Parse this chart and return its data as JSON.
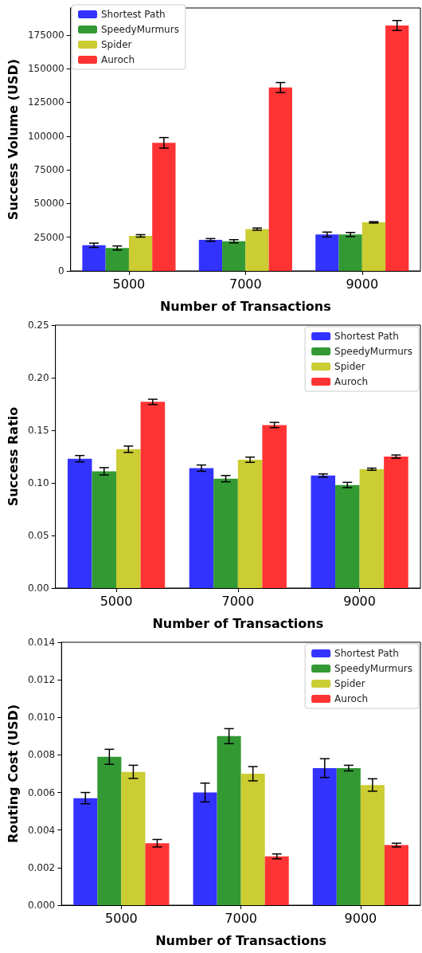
{
  "chart_data": [
    {
      "type": "bar",
      "xlabel": "Number of Transactions",
      "ylabel": "Success Volume (USD)",
      "categories": [
        "5000",
        "7000",
        "9000"
      ],
      "ylim": [
        0,
        195000
      ],
      "yticks": [
        0,
        25000,
        50000,
        75000,
        100000,
        125000,
        150000,
        175000
      ],
      "grid": false,
      "legend": "top left",
      "series": [
        {
          "name": "Shortest Path",
          "color": "#3333ff",
          "values": [
            19000,
            23000,
            27000
          ],
          "errors": [
            1600,
            1000,
            1800
          ]
        },
        {
          "name": "SpeedyMurmurs",
          "color": "#339933",
          "values": [
            17000,
            22000,
            27000
          ],
          "errors": [
            1500,
            1200,
            1500
          ]
        },
        {
          "name": "Spider",
          "color": "#cccc33",
          "values": [
            26000,
            31000,
            36000
          ],
          "errors": [
            900,
            800,
            500
          ]
        },
        {
          "name": "Auroch",
          "color": "#ff3333",
          "values": [
            95000,
            136000,
            182000
          ],
          "errors": [
            3900,
            3700,
            3700
          ]
        }
      ]
    },
    {
      "type": "bar",
      "xlabel": "Number of Transactions",
      "ylabel": "Success Ratio",
      "categories": [
        "5000",
        "7000",
        "9000"
      ],
      "ylim": [
        0,
        0.25
      ],
      "yticks": [
        {
          "value": 0,
          "label": "0.00"
        },
        0.05,
        {
          "value": 0.1,
          "label": "0.10"
        },
        0.15,
        {
          "value": 0.2,
          "label": "0.20"
        },
        0.25
      ],
      "grid": false,
      "legend": "top right",
      "series": [
        {
          "name": "Shortest Path",
          "color": "#3333ff",
          "values": [
            0.123,
            0.114,
            0.107
          ],
          "errors": [
            0.003,
            0.003,
            0.0015
          ]
        },
        {
          "name": "SpeedyMurmurs",
          "color": "#339933",
          "values": [
            0.111,
            0.104,
            0.098
          ],
          "errors": [
            0.0035,
            0.003,
            0.0025
          ]
        },
        {
          "name": "Spider",
          "color": "#cccc33",
          "values": [
            0.132,
            0.122,
            0.113
          ],
          "errors": [
            0.003,
            0.0025,
            0.001
          ]
        },
        {
          "name": "Auroch",
          "color": "#ff3333",
          "values": [
            0.177,
            0.155,
            0.125
          ],
          "errors": [
            0.0025,
            0.0025,
            0.0015
          ]
        }
      ]
    },
    {
      "type": "bar",
      "xlabel": "Number of Transactions",
      "ylabel": "Routing Cost (USD)",
      "categories": [
        "5000",
        "7000",
        "9000"
      ],
      "ylim": [
        0,
        0.014
      ],
      "yticks": [
        {
          "value": 0,
          "label": "0.000"
        },
        0.002,
        0.004,
        0.006,
        0.008,
        {
          "value": 0.01,
          "label": "0.010"
        },
        0.012,
        0.014
      ],
      "grid": false,
      "legend": "top right",
      "series": [
        {
          "name": "Shortest Path",
          "color": "#3333ff",
          "values": [
            0.0057,
            0.006,
            0.0073
          ],
          "errors": [
            0.0003,
            0.0005,
            0.0005
          ]
        },
        {
          "name": "SpeedyMurmurs",
          "color": "#339933",
          "values": [
            0.0079,
            0.009,
            0.0073
          ],
          "errors": [
            0.0004,
            0.0004,
            0.00015
          ]
        },
        {
          "name": "Spider",
          "color": "#cccc33",
          "values": [
            0.0071,
            0.007,
            0.0064
          ],
          "errors": [
            0.00035,
            0.00038,
            0.00033
          ]
        },
        {
          "name": "Auroch",
          "color": "#ff3333",
          "values": [
            0.0033,
            0.0026,
            0.0032
          ],
          "errors": [
            0.0002,
            0.00013,
            0.0001
          ]
        }
      ]
    }
  ]
}
